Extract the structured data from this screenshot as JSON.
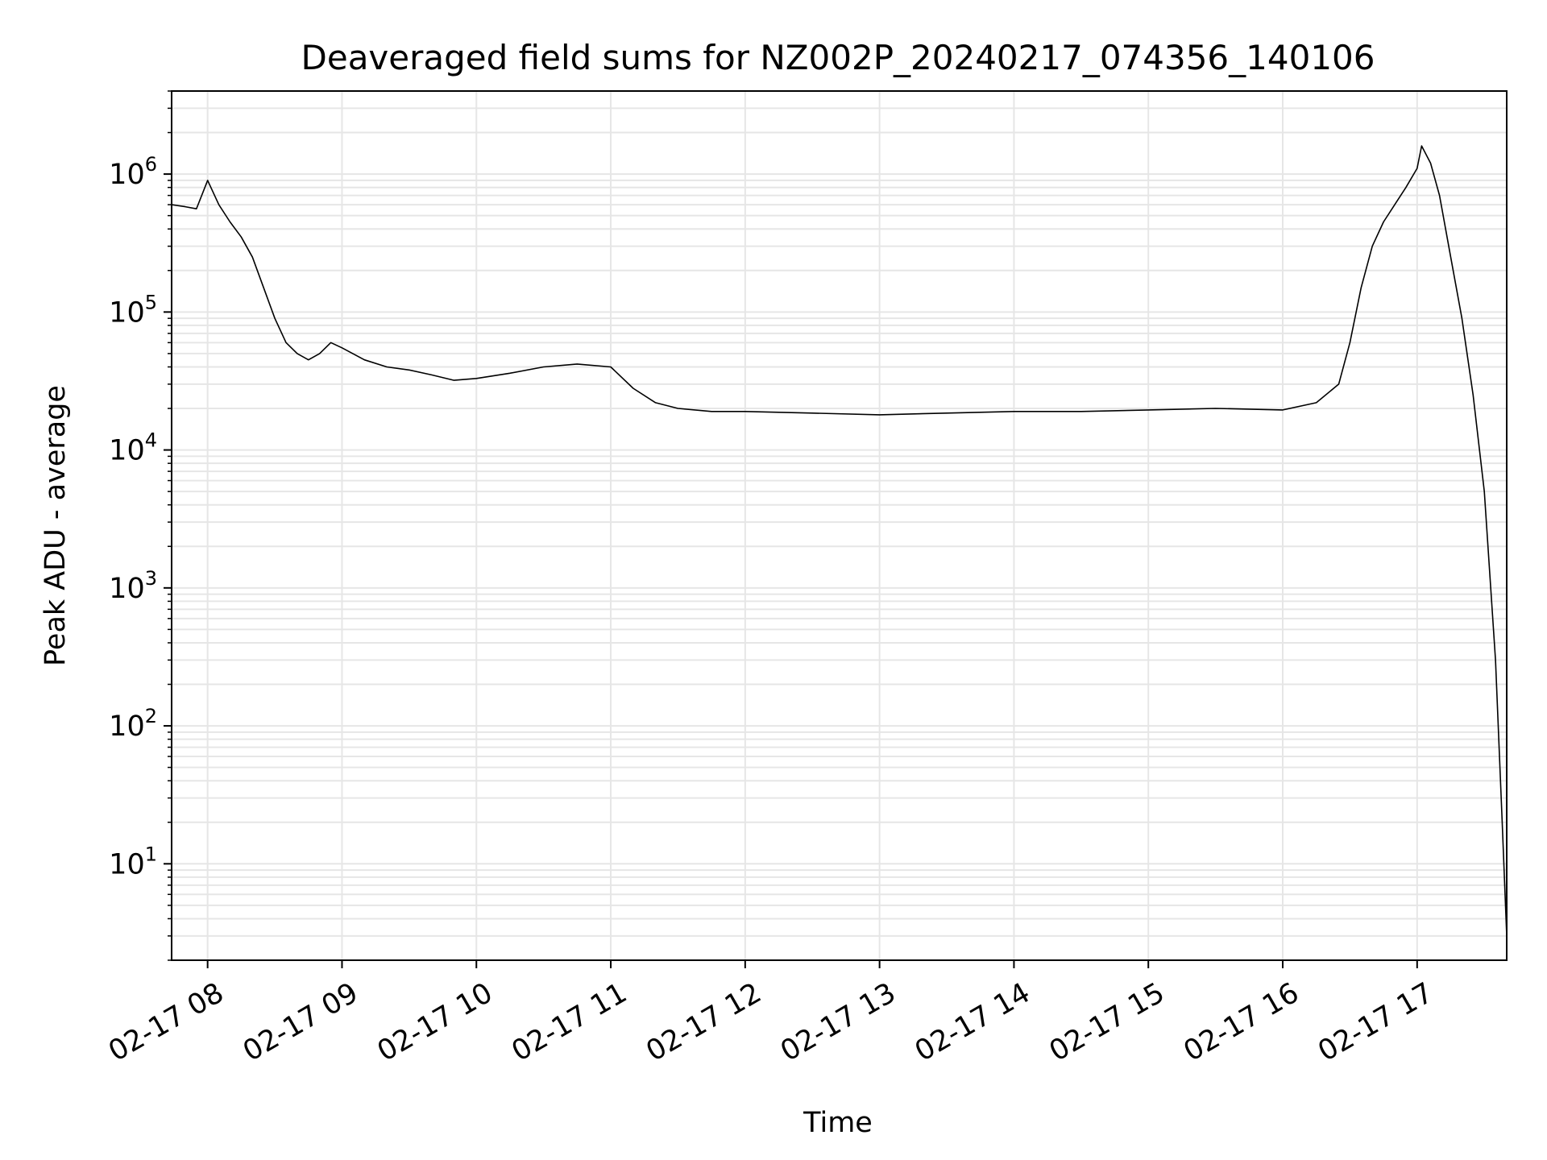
{
  "chart_data": {
    "type": "line",
    "title": "Deaveraged field sums for NZ002P_20240217_074356_140106",
    "xlabel": "Time",
    "ylabel": "Peak ADU - average",
    "yscale": "log",
    "ylim": [
      2,
      4000000
    ],
    "xlim": [
      "2024-02-17 07:43:56",
      "2024-02-17 17:40:00"
    ],
    "grid": true,
    "line_color": "#000000",
    "grid_color": "#e6e6e6",
    "x_ticks": [
      {
        "value": "2024-02-17 08:00",
        "label": "02-17 08"
      },
      {
        "value": "2024-02-17 09:00",
        "label": "02-17 09"
      },
      {
        "value": "2024-02-17 10:00",
        "label": "02-17 10"
      },
      {
        "value": "2024-02-17 11:00",
        "label": "02-17 11"
      },
      {
        "value": "2024-02-17 12:00",
        "label": "02-17 12"
      },
      {
        "value": "2024-02-17 13:00",
        "label": "02-17 13"
      },
      {
        "value": "2024-02-17 14:00",
        "label": "02-17 14"
      },
      {
        "value": "2024-02-17 15:00",
        "label": "02-17 15"
      },
      {
        "value": "2024-02-17 16:00",
        "label": "02-17 16"
      },
      {
        "value": "2024-02-17 17:00",
        "label": "02-17 17"
      }
    ],
    "y_ticks": [
      {
        "value": 10,
        "base": "10",
        "exp": "1"
      },
      {
        "value": 100,
        "base": "10",
        "exp": "2"
      },
      {
        "value": 1000,
        "base": "10",
        "exp": "3"
      },
      {
        "value": 10000,
        "base": "10",
        "exp": "4"
      },
      {
        "value": 100000,
        "base": "10",
        "exp": "5"
      },
      {
        "value": 1000000,
        "base": "10",
        "exp": "6"
      }
    ],
    "series": [
      {
        "x": [
          "2024-02-17 07:43:56",
          "2024-02-17 07:50",
          "2024-02-17 07:55",
          "2024-02-17 08:00",
          "2024-02-17 08:05",
          "2024-02-17 08:10",
          "2024-02-17 08:15",
          "2024-02-17 08:20",
          "2024-02-17 08:25",
          "2024-02-17 08:30",
          "2024-02-17 08:35",
          "2024-02-17 08:40",
          "2024-02-17 08:45",
          "2024-02-17 08:50",
          "2024-02-17 08:55",
          "2024-02-17 09:00",
          "2024-02-17 09:10",
          "2024-02-17 09:20",
          "2024-02-17 09:30",
          "2024-02-17 09:40",
          "2024-02-17 09:50",
          "2024-02-17 10:00",
          "2024-02-17 10:15",
          "2024-02-17 10:30",
          "2024-02-17 10:45",
          "2024-02-17 11:00",
          "2024-02-17 11:10",
          "2024-02-17 11:20",
          "2024-02-17 11:30",
          "2024-02-17 11:45",
          "2024-02-17 12:00",
          "2024-02-17 12:30",
          "2024-02-17 13:00",
          "2024-02-17 13:30",
          "2024-02-17 14:00",
          "2024-02-17 14:30",
          "2024-02-17 15:00",
          "2024-02-17 15:30",
          "2024-02-17 16:00",
          "2024-02-17 16:15",
          "2024-02-17 16:25",
          "2024-02-17 16:30",
          "2024-02-17 16:35",
          "2024-02-17 16:40",
          "2024-02-17 16:45",
          "2024-02-17 16:50",
          "2024-02-17 16:55",
          "2024-02-17 17:00",
          "2024-02-17 17:02",
          "2024-02-17 17:06",
          "2024-02-17 17:10",
          "2024-02-17 17:15",
          "2024-02-17 17:20",
          "2024-02-17 17:25",
          "2024-02-17 17:30",
          "2024-02-17 17:35",
          "2024-02-17 17:38",
          "2024-02-17 17:40"
        ],
        "values": [
          600000,
          580000,
          560000,
          900000,
          600000,
          450000,
          350000,
          250000,
          150000,
          90000,
          60000,
          50000,
          45000,
          50000,
          60000,
          55000,
          45000,
          40000,
          38000,
          35000,
          32000,
          33000,
          36000,
          40000,
          42000,
          40000,
          28000,
          22000,
          20000,
          19000,
          19000,
          18500,
          18000,
          18500,
          19000,
          19000,
          19500,
          20000,
          19500,
          22000,
          30000,
          60000,
          150000,
          300000,
          450000,
          600000,
          800000,
          1100000,
          1600000,
          1200000,
          700000,
          250000,
          90000,
          25000,
          5000,
          300,
          20,
          3
        ]
      }
    ]
  }
}
